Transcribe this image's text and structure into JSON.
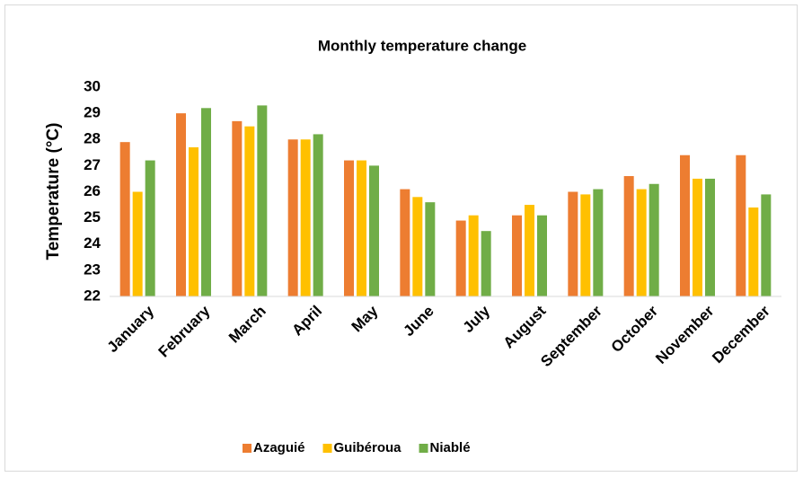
{
  "chart_data": {
    "type": "bar",
    "title": "Monthly temperature change",
    "y_label": "Temperature (°C)",
    "categories": [
      "January",
      "February",
      "March",
      "April",
      "May",
      "June",
      "July",
      "August",
      "September",
      "October",
      "November",
      "December"
    ],
    "series": [
      {
        "name": "Azaguié",
        "color": "#ed7d31",
        "values": [
          27.9,
          29.0,
          28.7,
          28.0,
          27.2,
          26.1,
          24.9,
          25.1,
          26.0,
          26.6,
          27.4,
          27.4
        ]
      },
      {
        "name": "Guibéroua",
        "color": "#ffc000",
        "values": [
          26.0,
          27.7,
          28.5,
          28.0,
          27.2,
          25.8,
          25.1,
          25.5,
          25.9,
          26.1,
          26.5,
          25.4
        ]
      },
      {
        "name": "Niablé",
        "color": "#70ad47",
        "values": [
          27.2,
          29.2,
          29.3,
          28.2,
          27.0,
          25.6,
          24.5,
          25.1,
          26.1,
          26.3,
          26.5,
          25.9
        ]
      }
    ],
    "ylim": [
      22,
      30
    ],
    "yticks": [
      22,
      23,
      24,
      25,
      26,
      27,
      28,
      29,
      30
    ],
    "grid": false,
    "legend": "bottom"
  }
}
